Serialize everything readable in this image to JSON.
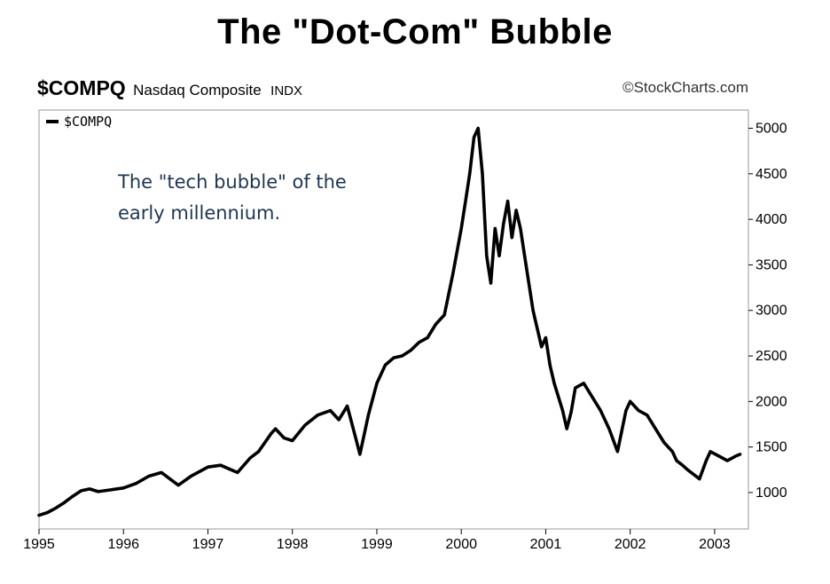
{
  "header": {
    "title": "The \"Dot-Com\" Bubble",
    "symbol": "$COMPQ",
    "name": "Nasdaq Composite",
    "type": "INDX",
    "credit": "©StockCharts.com"
  },
  "chart_data": {
    "type": "line",
    "title": "The \"Dot-Com\" Bubble",
    "xlabel": "",
    "ylabel": "",
    "xlim": [
      1995.0,
      2003.4
    ],
    "ylim": [
      600,
      5200
    ],
    "x_ticks": [
      "1995",
      "1996",
      "1997",
      "1998",
      "1999",
      "2000",
      "2001",
      "2002",
      "2003"
    ],
    "x_tick_values": [
      1995,
      1996,
      1997,
      1998,
      1999,
      2000,
      2001,
      2002,
      2003
    ],
    "y_ticks": [
      1000,
      1500,
      2000,
      2500,
      3000,
      3500,
      4000,
      4500,
      5000
    ],
    "y_axis_side": "right",
    "grid": false,
    "legend": {
      "position": "top-left",
      "entries": [
        "$COMPQ"
      ]
    },
    "annotation": [
      "The \"tech bubble\" of the",
      "early millennium."
    ],
    "colors": {
      "line": "#000000",
      "annotation": "#1f3650"
    },
    "series": [
      {
        "name": "$COMPQ",
        "x": [
          1995.0,
          1995.1,
          1995.2,
          1995.3,
          1995.4,
          1995.5,
          1995.6,
          1995.7,
          1995.85,
          1996.0,
          1996.15,
          1996.3,
          1996.45,
          1996.55,
          1996.65,
          1996.8,
          1997.0,
          1997.15,
          1997.25,
          1997.35,
          1997.5,
          1997.6,
          1997.75,
          1997.8,
          1997.9,
          1998.0,
          1998.15,
          1998.3,
          1998.45,
          1998.55,
          1998.65,
          1998.75,
          1998.8,
          1998.9,
          1999.0,
          1999.1,
          1999.2,
          1999.3,
          1999.4,
          1999.5,
          1999.6,
          1999.7,
          1999.8,
          1999.9,
          2000.0,
          2000.05,
          2000.1,
          2000.15,
          2000.2,
          2000.25,
          2000.3,
          2000.35,
          2000.4,
          2000.45,
          2000.5,
          2000.55,
          2000.6,
          2000.65,
          2000.7,
          2000.75,
          2000.85,
          2000.95,
          2001.0,
          2001.05,
          2001.1,
          2001.2,
          2001.25,
          2001.3,
          2001.35,
          2001.45,
          2001.55,
          2001.65,
          2001.75,
          2001.85,
          2001.95,
          2002.0,
          2002.1,
          2002.2,
          2002.3,
          2002.4,
          2002.5,
          2002.55,
          2002.62,
          2002.68,
          2002.75,
          2002.82,
          2002.9,
          2002.95,
          2003.05,
          2003.15,
          2003.25,
          2003.3
        ],
        "values": [
          750,
          780,
          830,
          890,
          960,
          1020,
          1040,
          1010,
          1030,
          1050,
          1100,
          1180,
          1220,
          1150,
          1080,
          1180,
          1280,
          1300,
          1260,
          1220,
          1380,
          1450,
          1650,
          1700,
          1600,
          1570,
          1740,
          1850,
          1900,
          1800,
          1950,
          1600,
          1420,
          1850,
          2200,
          2400,
          2480,
          2500,
          2560,
          2650,
          2700,
          2850,
          2950,
          3400,
          3900,
          4200,
          4500,
          4900,
          5000,
          4500,
          3600,
          3300,
          3900,
          3600,
          3950,
          4200,
          3800,
          4100,
          3900,
          3600,
          3000,
          2600,
          2700,
          2400,
          2200,
          1900,
          1700,
          1880,
          2150,
          2200,
          2050,
          1900,
          1700,
          1450,
          1900,
          2000,
          1900,
          1850,
          1700,
          1550,
          1450,
          1350,
          1300,
          1250,
          1200,
          1150,
          1350,
          1450,
          1400,
          1350,
          1400,
          1420
        ]
      }
    ]
  }
}
